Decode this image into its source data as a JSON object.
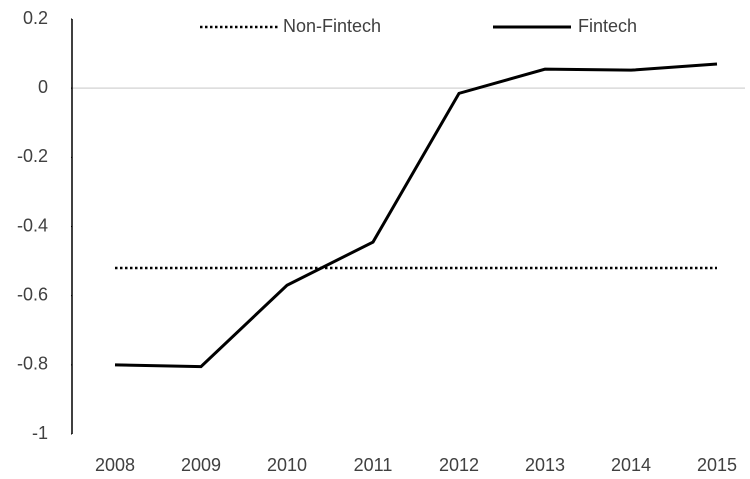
{
  "chart_data": {
    "type": "line",
    "categories": [
      "2008",
      "2009",
      "2010",
      "2011",
      "2012",
      "2013",
      "2014",
      "2015"
    ],
    "series": [
      {
        "name": "Non-Fintech",
        "color": "#000000",
        "dash": "dotted",
        "values": [
          -0.52,
          -0.52,
          -0.52,
          -0.52,
          -0.52,
          -0.52,
          -0.52,
          -0.52
        ]
      },
      {
        "name": "Fintech",
        "color": "#000000",
        "dash": "solid",
        "values": [
          -0.8,
          -0.805,
          -0.57,
          -0.445,
          -0.015,
          0.055,
          0.052,
          0.07
        ]
      }
    ],
    "ylim": [
      -1,
      0.2
    ],
    "yticks": [
      0.2,
      0,
      -0.2,
      -0.4,
      -0.6,
      -0.8,
      -1
    ],
    "legend": "top",
    "zero_line": true
  }
}
